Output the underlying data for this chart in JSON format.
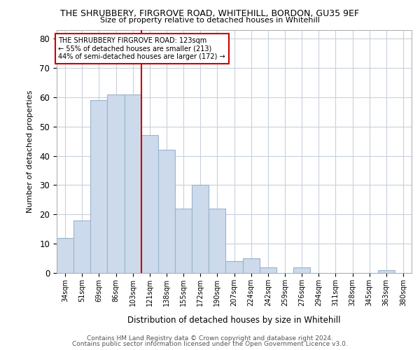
{
  "title": "THE SHRUBBERY, FIRGROVE ROAD, WHITEHILL, BORDON, GU35 9EF",
  "subtitle": "Size of property relative to detached houses in Whitehill",
  "xlabel": "Distribution of detached houses by size in Whitehill",
  "ylabel": "Number of detached properties",
  "bar_labels": [
    "34sqm",
    "51sqm",
    "69sqm",
    "86sqm",
    "103sqm",
    "121sqm",
    "138sqm",
    "155sqm",
    "172sqm",
    "190sqm",
    "207sqm",
    "224sqm",
    "242sqm",
    "259sqm",
    "276sqm",
    "294sqm",
    "311sqm",
    "328sqm",
    "345sqm",
    "363sqm",
    "380sqm"
  ],
  "bar_values": [
    12,
    18,
    59,
    61,
    61,
    47,
    42,
    22,
    30,
    22,
    4,
    5,
    2,
    0,
    2,
    0,
    0,
    0,
    0,
    1,
    0
  ],
  "bar_color": "#ccdaeb",
  "bar_edge_color": "#9ab4cc",
  "red_line_color": "#cc0000",
  "red_line_xindex": 5,
  "annotation_text_line1": "THE SHRUBBERY FIRGROVE ROAD: 123sqm",
  "annotation_text_line2": "← 55% of detached houses are smaller (213)",
  "annotation_text_line3": "44% of semi-detached houses are larger (172) →",
  "ylim": [
    0,
    83
  ],
  "yticks": [
    0,
    10,
    20,
    30,
    40,
    50,
    60,
    70,
    80
  ],
  "footer_line1": "Contains HM Land Registry data © Crown copyright and database right 2024.",
  "footer_line2": "Contains public sector information licensed under the Open Government Licence v3.0.",
  "bg_color": "#ffffff",
  "plot_bg_color": "#ffffff",
  "grid_color": "#c8d0dc"
}
